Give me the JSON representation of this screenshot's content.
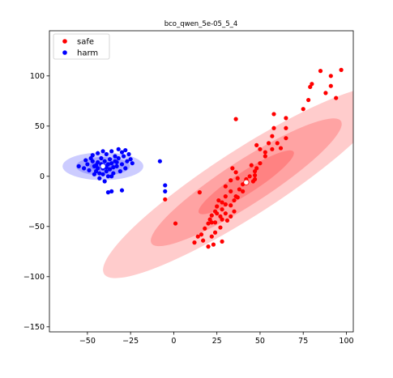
{
  "chart_data": {
    "type": "scatter",
    "title": "bco_qwen_5e-05_5_4",
    "xlabel": "",
    "ylabel": "",
    "xlim": [
      -72,
      104
    ],
    "ylim": [
      -155,
      145
    ],
    "x_ticks": [
      -50,
      -25,
      0,
      25,
      50,
      75,
      100
    ],
    "y_ticks": [
      -150,
      -100,
      -50,
      0,
      50,
      100
    ],
    "x_tick_labels": [
      "−50",
      "−25",
      "0",
      "25",
      "50",
      "75",
      "100"
    ],
    "y_tick_labels": [
      "−150",
      "−100",
      "−50",
      "0",
      "50",
      "100"
    ],
    "grid": false,
    "legend_position": "top-left",
    "series": [
      {
        "name": "safe",
        "color": "#ff0000",
        "mean": [
          42,
          -6
        ],
        "ellipse": {
          "cx": 42,
          "cy": -6,
          "rx_sd": 41,
          "ry_sd": 7.6,
          "angle_deg": 48,
          "sigmas": [
            1,
            2,
            3
          ]
        },
        "points": [
          [
            36,
            57
          ],
          [
            85,
            105
          ],
          [
            97,
            106
          ],
          [
            80,
            92
          ],
          [
            79,
            89
          ],
          [
            91,
            100
          ],
          [
            91,
            90
          ],
          [
            94,
            78
          ],
          [
            88,
            83
          ],
          [
            78,
            76
          ],
          [
            75,
            67
          ],
          [
            58,
            62
          ],
          [
            65,
            58
          ],
          [
            65,
            48
          ],
          [
            58,
            48
          ],
          [
            57,
            40
          ],
          [
            65,
            38
          ],
          [
            60,
            33
          ],
          [
            62,
            28
          ],
          [
            55,
            33
          ],
          [
            57,
            27
          ],
          [
            53,
            24
          ],
          [
            48,
            31
          ],
          [
            50,
            27
          ],
          [
            53,
            20
          ],
          [
            50,
            13
          ],
          [
            48,
            8
          ],
          [
            47,
            5
          ],
          [
            45,
            11
          ],
          [
            47,
            1
          ],
          [
            44,
            0
          ],
          [
            47,
            -3
          ],
          [
            46,
            -5
          ],
          [
            42,
            -3
          ],
          [
            40,
            -8
          ],
          [
            36,
            4
          ],
          [
            34,
            8
          ],
          [
            37,
            -2
          ],
          [
            33,
            -4
          ],
          [
            30,
            -10
          ],
          [
            38,
            -13
          ],
          [
            40,
            -15
          ],
          [
            37,
            -21
          ],
          [
            36,
            -20
          ],
          [
            33,
            -15
          ],
          [
            30,
            -20
          ],
          [
            28,
            -26
          ],
          [
            26,
            -24
          ],
          [
            25,
            -30
          ],
          [
            24,
            -35
          ],
          [
            22,
            -39
          ],
          [
            21,
            -43
          ],
          [
            24,
            -46
          ],
          [
            28,
            -43
          ],
          [
            31,
            -44
          ],
          [
            27,
            -40
          ],
          [
            25,
            -37
          ],
          [
            28,
            -33
          ],
          [
            33,
            -29
          ],
          [
            35,
            -35
          ],
          [
            33,
            -40
          ],
          [
            30,
            -37
          ],
          [
            22,
            -46
          ],
          [
            20,
            -47
          ],
          [
            18,
            -52
          ],
          [
            24,
            -56
          ],
          [
            22,
            -60
          ],
          [
            17,
            -64
          ],
          [
            16,
            -58
          ],
          [
            14,
            -60
          ],
          [
            12,
            -66
          ],
          [
            23,
            -68
          ],
          [
            20,
            -70
          ],
          [
            15,
            -16
          ],
          [
            1,
            -47
          ],
          [
            -5,
            -23
          ],
          [
            28,
            -65
          ],
          [
            27,
            -51
          ],
          [
            30,
            -28
          ],
          [
            35,
            -24
          ]
        ]
      },
      {
        "name": "harm",
        "color": "#0000ff",
        "mean": [
          -41,
          10
        ],
        "ellipse": {
          "cx": -41,
          "cy": 10,
          "rx_sd": 7.8,
          "ry_sd": 4.6,
          "angle_deg": 0,
          "sigmas": [
            1,
            2,
            3
          ]
        },
        "points": [
          [
            -55,
            10
          ],
          [
            -52,
            8
          ],
          [
            -50,
            12
          ],
          [
            -49,
            6
          ],
          [
            -47,
            15
          ],
          [
            -46,
            10
          ],
          [
            -45,
            5
          ],
          [
            -44,
            14
          ],
          [
            -44,
            8
          ],
          [
            -43,
            3
          ],
          [
            -42,
            18
          ],
          [
            -42,
            12
          ],
          [
            -41,
            8
          ],
          [
            -41,
            2
          ],
          [
            -40,
            15
          ],
          [
            -40,
            10
          ],
          [
            -39,
            22
          ],
          [
            -39,
            5
          ],
          [
            -38,
            12
          ],
          [
            -38,
            0
          ],
          [
            -37,
            17
          ],
          [
            -37,
            7
          ],
          [
            -36,
            25
          ],
          [
            -36,
            13
          ],
          [
            -35,
            9
          ],
          [
            -35,
            3
          ],
          [
            -34,
            20
          ],
          [
            -34,
            15
          ],
          [
            -33,
            10
          ],
          [
            -32,
            27
          ],
          [
            -32,
            18
          ],
          [
            -31,
            5
          ],
          [
            -30,
            24
          ],
          [
            -30,
            12
          ],
          [
            -29,
            20
          ],
          [
            -28,
            26
          ],
          [
            -28,
            8
          ],
          [
            -27,
            15
          ],
          [
            -26,
            22
          ],
          [
            -25,
            17
          ],
          [
            -24,
            13
          ],
          [
            -48,
            18
          ],
          [
            -46,
            2
          ],
          [
            -43,
            -2
          ],
          [
            -40,
            -5
          ],
          [
            -38,
            -16
          ],
          [
            -36,
            -15
          ],
          [
            -30,
            -14
          ],
          [
            -5,
            -15
          ],
          [
            -5,
            -9
          ],
          [
            -8,
            15
          ],
          [
            -45,
            11
          ],
          [
            -39,
            9
          ],
          [
            -33,
            14
          ],
          [
            -36,
            0
          ],
          [
            -51,
            16
          ],
          [
            -47,
            21
          ],
          [
            -44,
            23
          ],
          [
            -41,
            25
          ]
        ]
      }
    ]
  },
  "legend": {
    "items": [
      {
        "label": "safe",
        "color": "#ff0000"
      },
      {
        "label": "harm",
        "color": "#0000ff"
      }
    ]
  }
}
